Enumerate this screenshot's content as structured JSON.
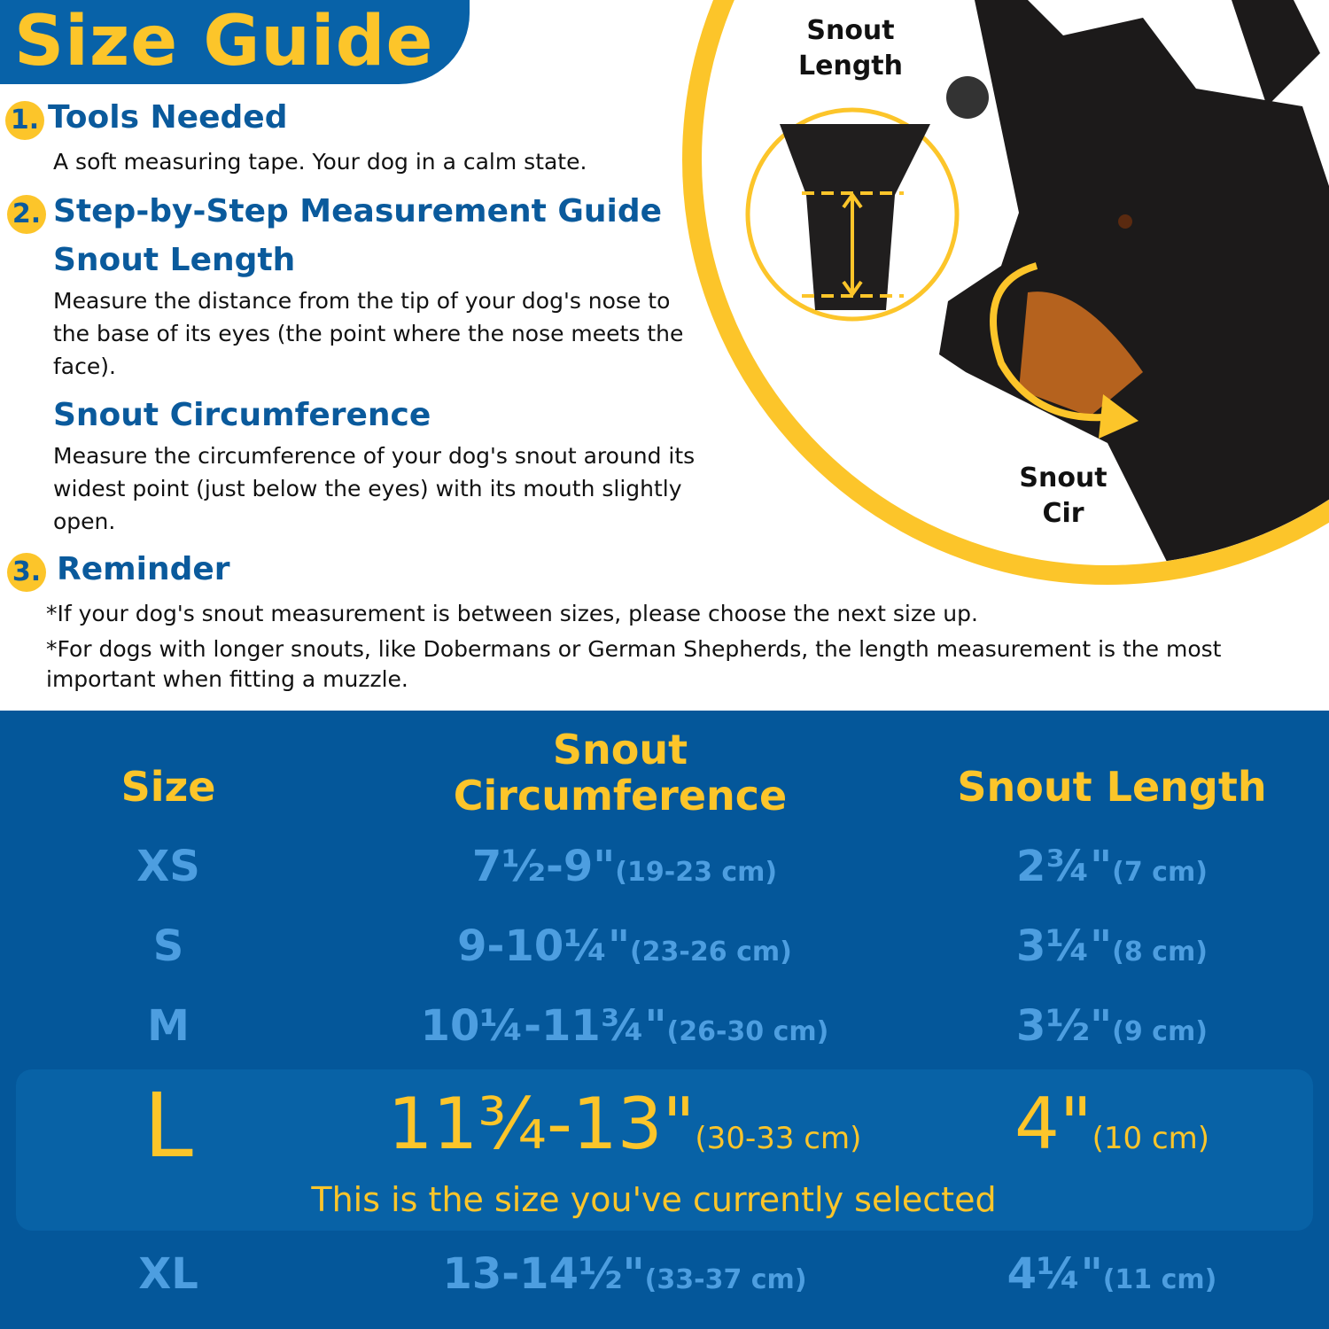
{
  "title": "Size Guide",
  "sections": [
    {
      "number": "1.",
      "heading": "Tools Needed",
      "text": "A soft measuring tape. Your dog in a calm state."
    },
    {
      "number": "2.",
      "heading": "Step-by-Step Measurement Guide",
      "sub": [
        {
          "heading": "Snout Length",
          "text": "Measure the distance from the tip of your dog's nose to the base of its eyes (the point where the nose meets the face)."
        },
        {
          "heading": "Snout Circumference",
          "text": "Measure the circumference of your dog's snout around its widest point (just below the eyes) with its mouth slightly open."
        }
      ]
    },
    {
      "number": "3.",
      "heading": "Reminder",
      "notes": [
        "*If your dog's snout measurement is between sizes, please choose the next size up.",
        "*For dogs with longer snouts, like Dobermans or German Shepherds, the length measurement is the most important when fitting a muzzle."
      ]
    }
  ],
  "illustration": {
    "snout_length_label": "Snout Length",
    "snout_cir_label": "Snout Cir"
  },
  "table": {
    "headers": [
      "Size",
      "Snout Circumference",
      "Snout Length"
    ],
    "rows": [
      {
        "size": "XS",
        "circ": "7½-9\"",
        "circ_cm": "(19-23 cm)",
        "len": "2¾\"",
        "len_cm": "(7 cm)"
      },
      {
        "size": "S",
        "circ": "9-10¼\"",
        "circ_cm": "(23-26 cm)",
        "len": "3¼\"",
        "len_cm": "(8 cm)"
      },
      {
        "size": "M",
        "circ": "10¼-11¾\"",
        "circ_cm": "(26-30 cm)",
        "len": "3½\"",
        "len_cm": "(9 cm)"
      },
      {
        "size": "L",
        "circ": "11¾-13\"",
        "circ_cm": "(30-33 cm)",
        "len": "4\"",
        "len_cm": "(10 cm)",
        "selected": true
      },
      {
        "size": "XL",
        "circ": "13-14½\"",
        "circ_cm": "(33-37 cm)",
        "len": "4¼\"",
        "len_cm": "(11 cm)"
      }
    ],
    "selected_note": "This is the size you've currently selected"
  },
  "colors": {
    "brand_blue": "#04579a",
    "accent_yellow": "#fcc52a",
    "muted_blue": "#4d9ee0",
    "heading_blue": "#0a5a9c"
  }
}
